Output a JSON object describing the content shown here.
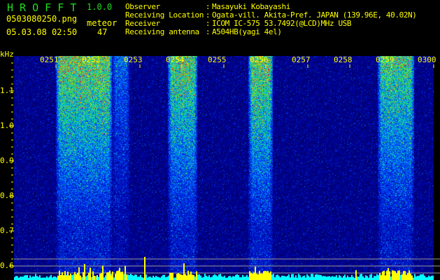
{
  "app": {
    "name": "H R O F F T",
    "version": "1.0.0"
  },
  "file": {
    "name": "0503080250.png",
    "datetime": "05.03.08 02:50"
  },
  "meteor": {
    "label": "meteor",
    "count": "47"
  },
  "info": [
    {
      "label": "Observer",
      "value": "Masayuki Kobayashi"
    },
    {
      "label": "Receiving Location",
      "value": "Ogata-vill. Akita-Pref. JAPAN (139.96E, 40.02N)"
    },
    {
      "label": "Receiver",
      "value": "ICOM IC-575 53.7492(@LCD)MHz USB"
    },
    {
      "label": "Receiving antenna",
      "value": "A504HB(yagi 4el)"
    }
  ],
  "colors": {
    "text": "#ffff00",
    "title": "#22dd22",
    "baseline": "#00ffff",
    "detection": "#ffff00"
  },
  "chart_data": {
    "type": "heatmap",
    "ylabel": "kHz",
    "ylim": [
      0.58,
      1.2
    ],
    "y_ticks": [
      "1.1",
      "1.0",
      "0.9",
      "0.8",
      "0.7",
      "0.6"
    ],
    "x_ticks": [
      "0251",
      "0252",
      "0253",
      "0254",
      "0255",
      "0256",
      "0257",
      "0258",
      "0259",
      "0300"
    ],
    "grid": false,
    "strong_echo_periods": [
      "0251-0252",
      "0254",
      "0256",
      "0259"
    ]
  }
}
